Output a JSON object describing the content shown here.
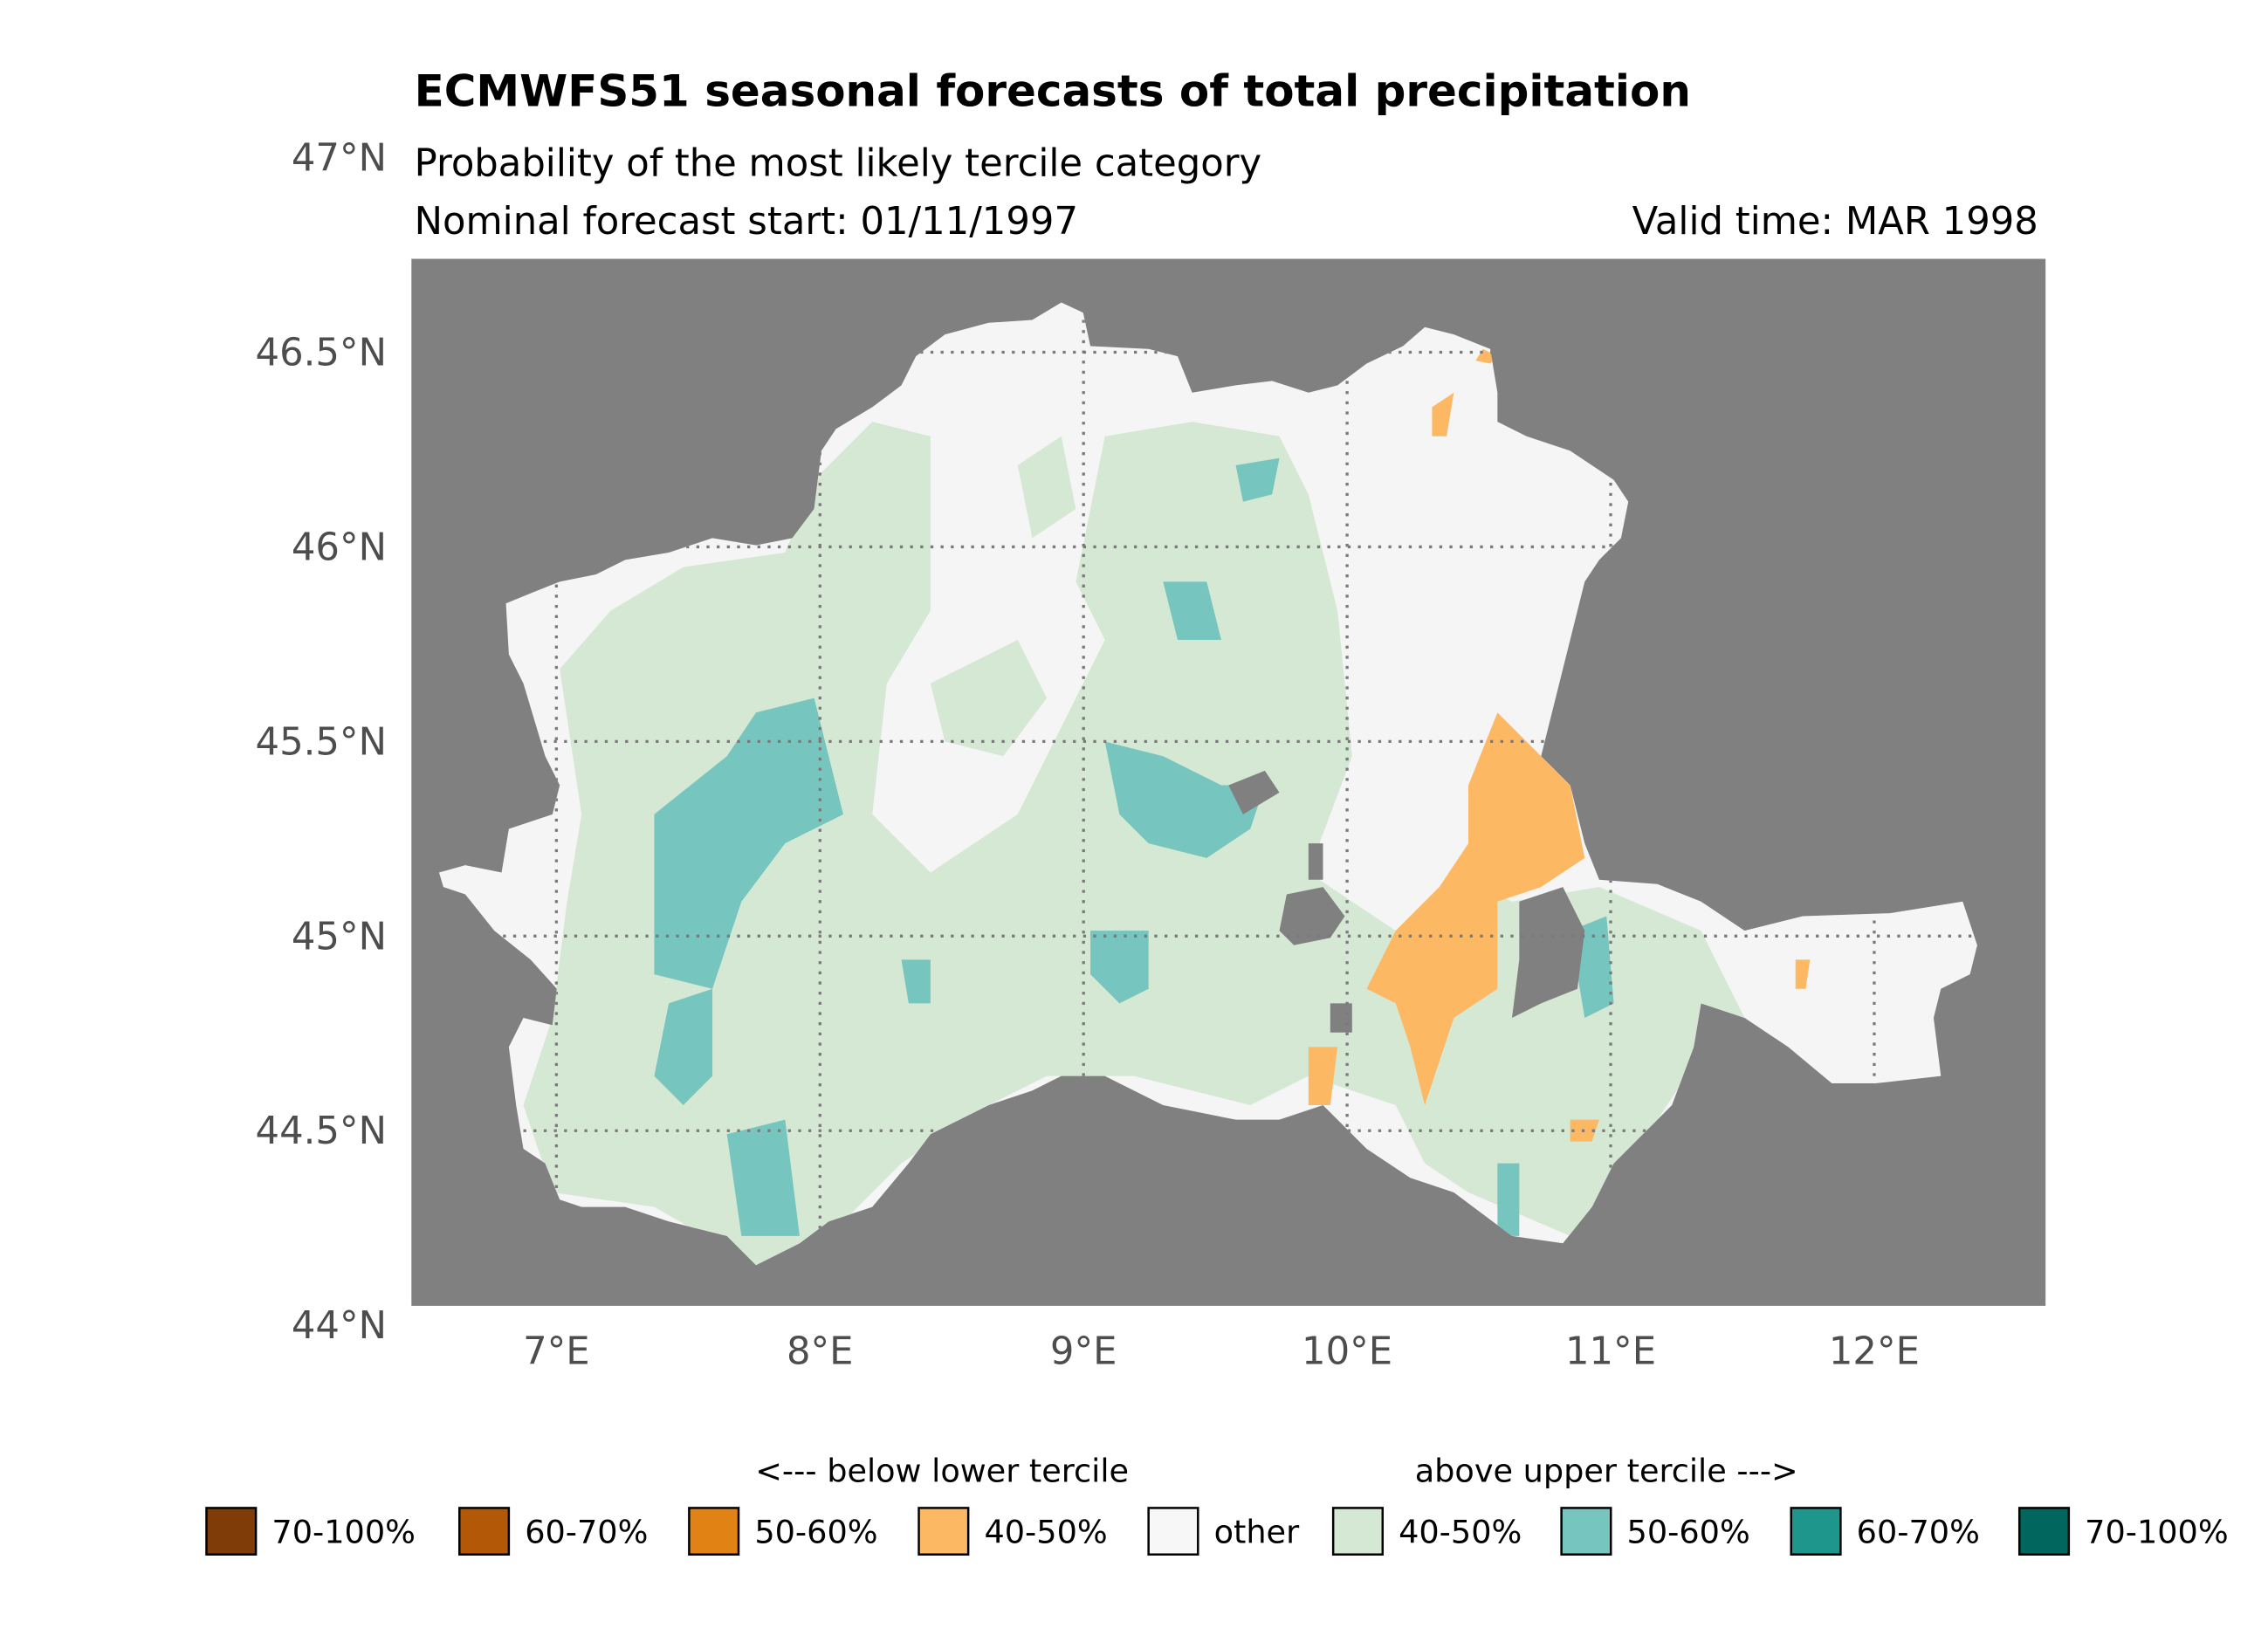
{
  "chart_data": {
    "type": "heatmap",
    "title": "ECMWFS51 seasonal forecasts of total precipitation",
    "subtitle": "Probability of the most likely tercile category",
    "forecast_start": "Nominal forecast start: 01/11/1997",
    "valid_time": "Valid time: MAR 1998",
    "xlim": [
      6.45,
      12.65
    ],
    "ylim": [
      44.05,
      46.74
    ],
    "x_ticks": [
      {
        "value": 7,
        "label": "7°E"
      },
      {
        "value": 8,
        "label": "8°E"
      },
      {
        "value": 9,
        "label": "9°E"
      },
      {
        "value": 10,
        "label": "10°E"
      },
      {
        "value": 11,
        "label": "11°E"
      },
      {
        "value": 12,
        "label": "12°E"
      }
    ],
    "y_ticks": [
      {
        "value": 44,
        "label": "44°N"
      },
      {
        "value": 44.5,
        "label": "44.5°N"
      },
      {
        "value": 45,
        "label": "45°N"
      },
      {
        "value": 45.5,
        "label": "45.5°N"
      },
      {
        "value": 46,
        "label": "46°N"
      },
      {
        "value": 46.5,
        "label": "46.5°N"
      },
      {
        "value": 47,
        "label": "47°N"
      }
    ],
    "grid": true,
    "background_color": "#808080",
    "legend": {
      "placement": "bottom",
      "below_label": "<--- below lower tercile",
      "above_label": "above upper tercile --->",
      "items": [
        {
          "label": "70-100%",
          "color": "#7f3b08"
        },
        {
          "label": "60-70%",
          "color": "#b35806"
        },
        {
          "label": "50-60%",
          "color": "#e08214"
        },
        {
          "label": "40-50%",
          "color": "#fdb863"
        },
        {
          "label": "other",
          "color": "#f7f7f7"
        },
        {
          "label": "40-50%",
          "color": "#d5e8d4"
        },
        {
          "label": "50-60%",
          "color": "#76c5bf"
        },
        {
          "label": "60-70%",
          "color": "#1f968b"
        },
        {
          "label": "70-100%",
          "color": "#01665e"
        }
      ]
    }
  }
}
